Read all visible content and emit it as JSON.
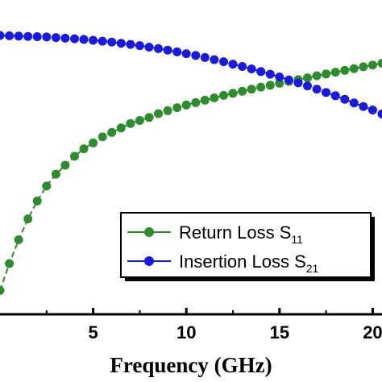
{
  "chart_data": {
    "type": "line",
    "title": "",
    "xlabel": "Frequency (GHz)",
    "ylabel": "",
    "xlim": [
      0,
      20.5
    ],
    "ylim": [
      0,
      1
    ],
    "x_ticks": [
      "5",
      "10",
      "15",
      "20"
    ],
    "x": [
      0,
      0.5,
      1,
      1.5,
      2,
      2.5,
      3,
      3.5,
      4,
      4.5,
      5,
      5.5,
      6,
      6.5,
      7,
      7.5,
      8,
      8.5,
      9,
      9.5,
      10,
      10.5,
      11,
      11.5,
      12,
      12.5,
      13,
      13.5,
      14,
      14.5,
      15,
      15.5,
      16,
      16.5,
      17,
      17.5,
      18,
      18.5,
      19,
      19.5,
      20,
      20.5
    ],
    "series": [
      {
        "name": "Return Loss S",
        "subscript": "11",
        "color": "#2e8b2e",
        "values": [
          0.08,
          0.17,
          0.25,
          0.32,
          0.38,
          0.43,
          0.47,
          0.5,
          0.53,
          0.555,
          0.575,
          0.595,
          0.61,
          0.625,
          0.64,
          0.65,
          0.66,
          0.673,
          0.683,
          0.693,
          0.702,
          0.71,
          0.718,
          0.726,
          0.734,
          0.741,
          0.748,
          0.755,
          0.762,
          0.768,
          0.775,
          0.781,
          0.787,
          0.793,
          0.8,
          0.806,
          0.812,
          0.818,
          0.824,
          0.83,
          0.836,
          0.842
        ]
      },
      {
        "name": "Insertion Loss S",
        "subscript": "21",
        "color": "#1a1adb",
        "values": [
          0.935,
          0.934,
          0.933,
          0.932,
          0.931,
          0.93,
          0.928,
          0.926,
          0.924,
          0.922,
          0.919,
          0.916,
          0.913,
          0.909,
          0.905,
          0.901,
          0.896,
          0.891,
          0.886,
          0.88,
          0.874,
          0.868,
          0.861,
          0.854,
          0.847,
          0.839,
          0.831,
          0.823,
          0.814,
          0.805,
          0.796,
          0.786,
          0.776,
          0.766,
          0.755,
          0.744,
          0.733,
          0.721,
          0.709,
          0.697,
          0.685,
          0.672
        ]
      }
    ],
    "legend_position": "lower-right"
  }
}
